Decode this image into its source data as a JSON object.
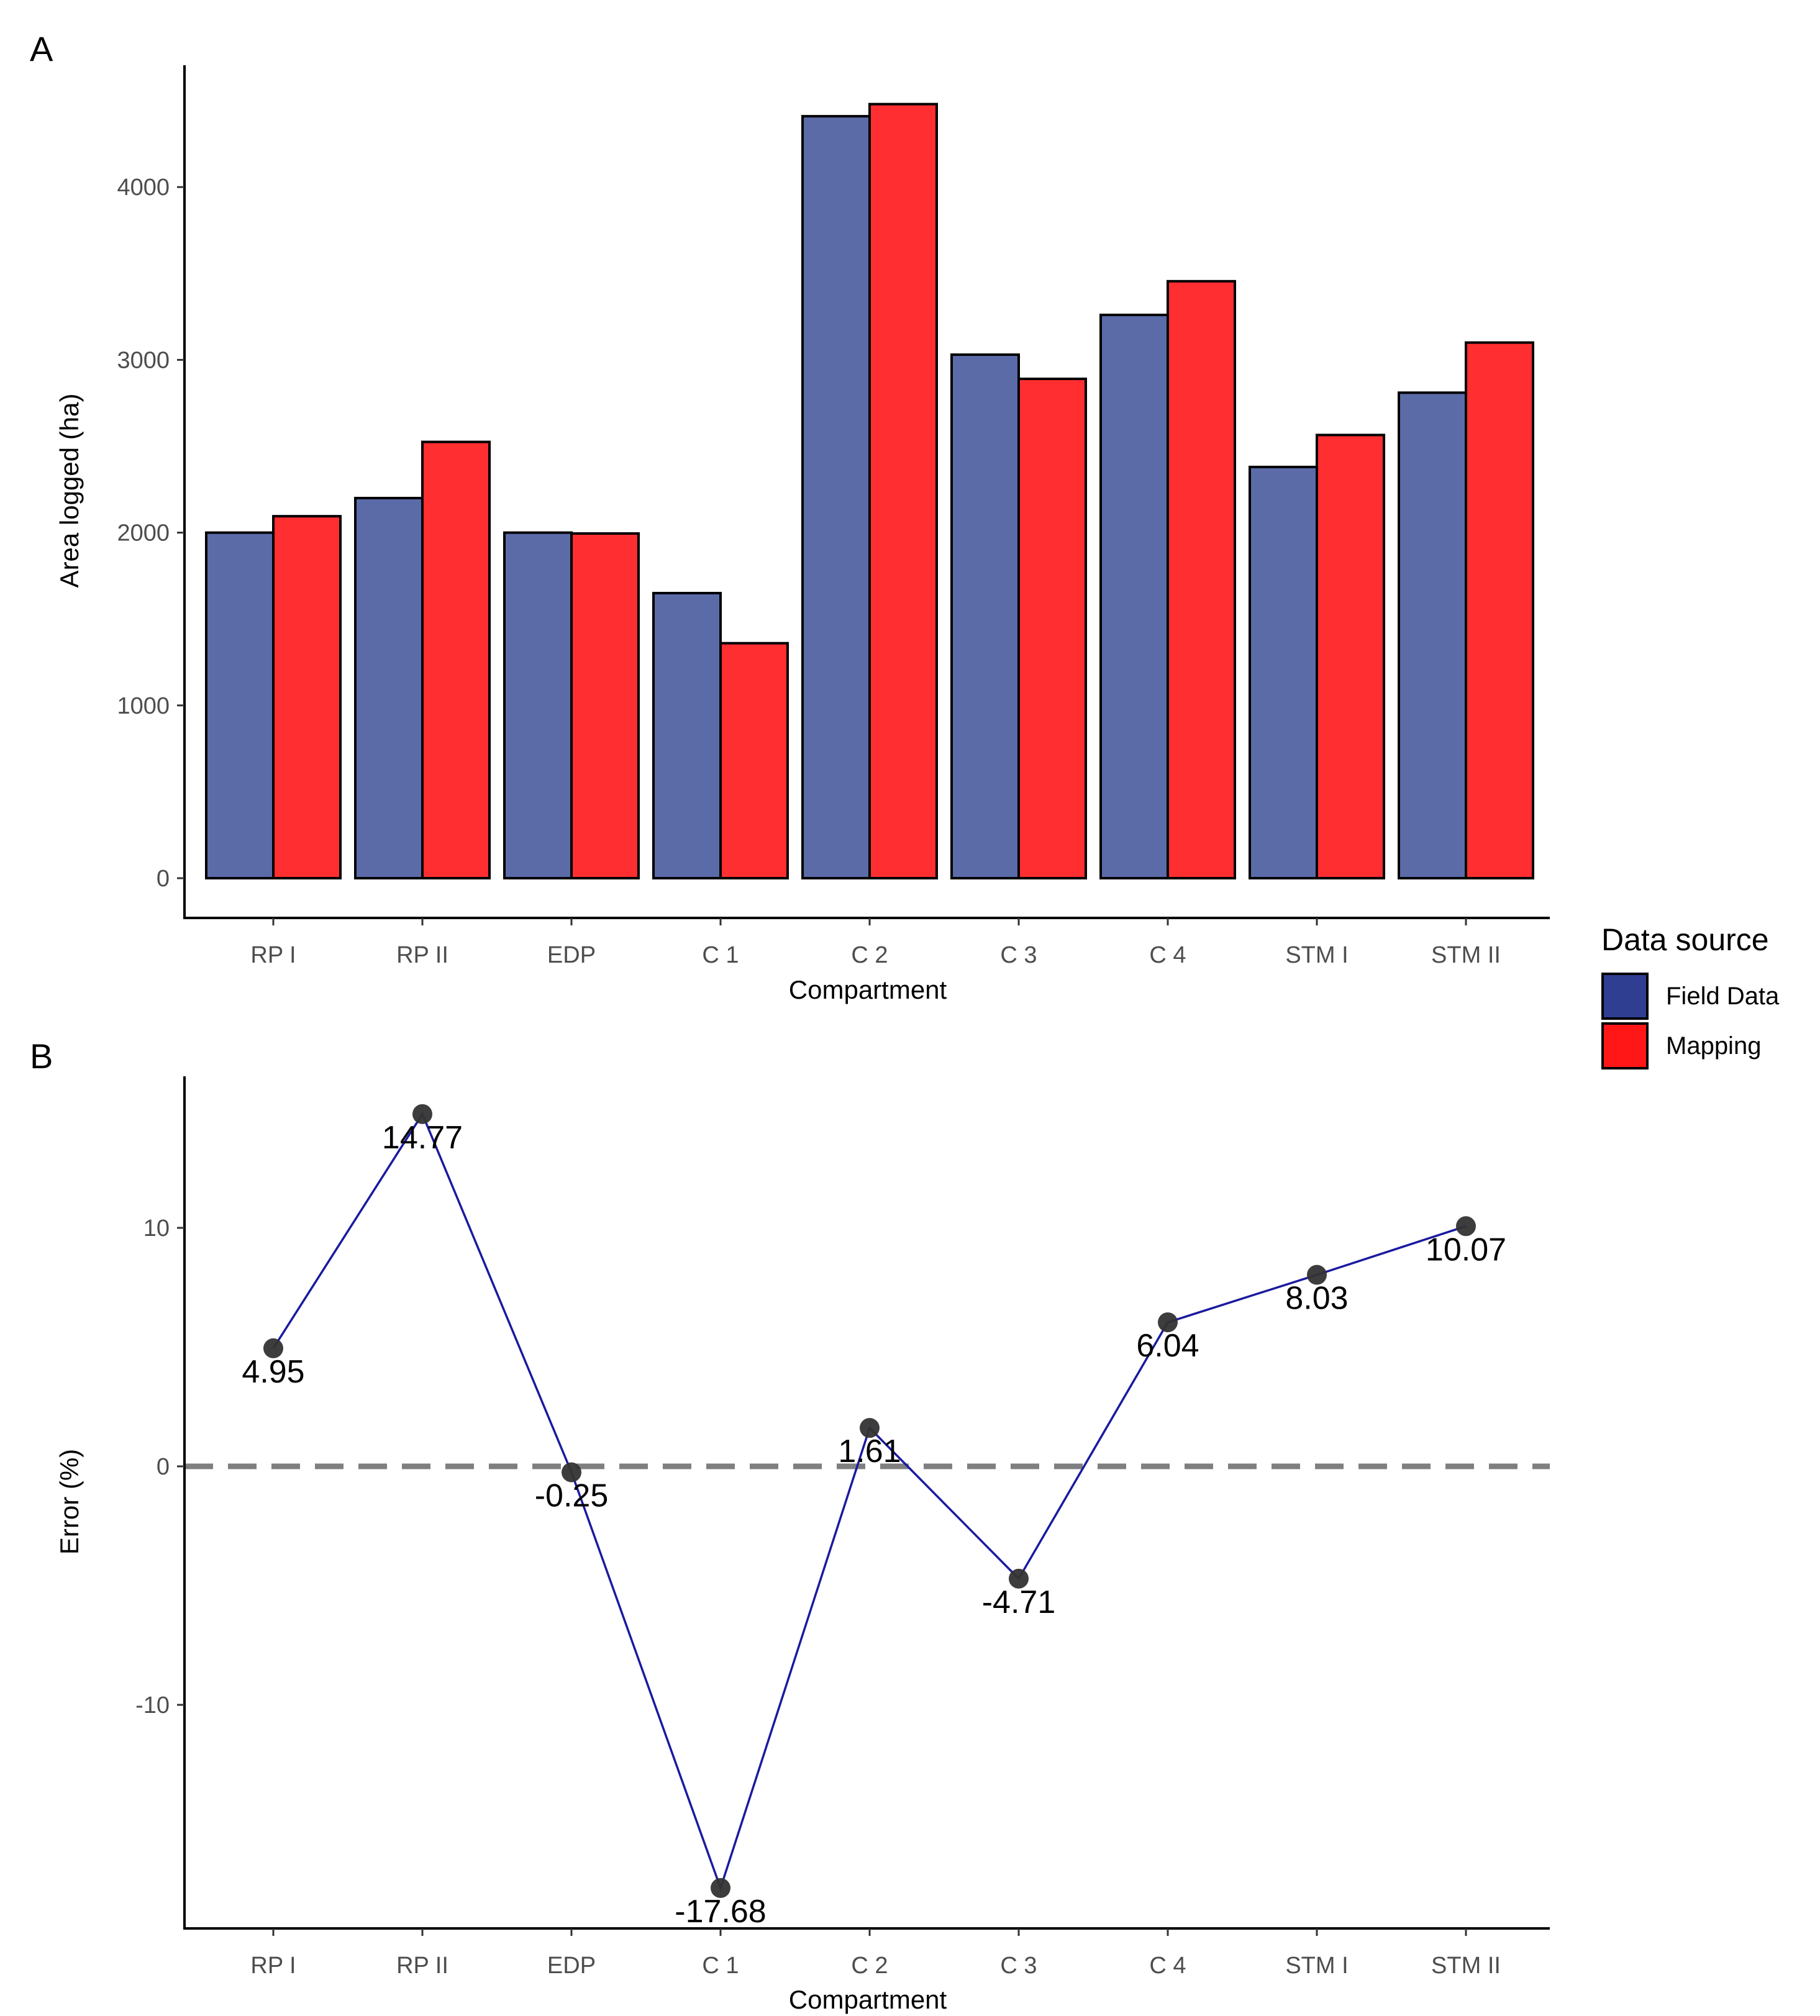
{
  "chart_data": [
    {
      "type": "bar",
      "panel": "A",
      "title": "",
      "xlabel": "Compartment",
      "ylabel": "Area logged (ha)",
      "categories": [
        "RP I",
        "RP II",
        "EDP",
        "C 1",
        "C 2",
        "C 3",
        "C 4",
        "STM I",
        "STM II"
      ],
      "series": [
        {
          "name": "Field Data",
          "color": "#5B6BA8",
          "values": [
            2000,
            2200,
            2000,
            1650,
            4410,
            3030,
            3260,
            2380,
            2810
          ]
        },
        {
          "name": "Mapping",
          "color": "#FF2E31",
          "values": [
            2095,
            2525,
            1995,
            1360,
            4480,
            2890,
            3455,
            2565,
            3100
          ]
        }
      ],
      "yticks": [
        0,
        1000,
        2000,
        3000,
        4000
      ],
      "ylim": [
        -200,
        4700
      ],
      "grid": false
    },
    {
      "type": "line",
      "panel": "B",
      "title": "",
      "xlabel": "Compartment",
      "ylabel": "Error (%)",
      "categories": [
        "RP I",
        "RP II",
        "EDP",
        "C 1",
        "C 2",
        "C 3",
        "C 4",
        "STM I",
        "STM II"
      ],
      "values": [
        4.95,
        14.77,
        -0.25,
        -17.68,
        1.61,
        -4.71,
        6.04,
        8.03,
        10.07
      ],
      "labels": [
        "4.95",
        "14.77",
        "-0.25",
        "-17.68",
        "1.61",
        "-4.71",
        "6.04",
        "8.03",
        "10.07"
      ],
      "line_color": "#1A1AA0",
      "point_color": "#333333",
      "reference_line": {
        "y": 0,
        "style": "dashed",
        "color": "#7F7F7F"
      },
      "yticks": [
        -10,
        0,
        10
      ],
      "ylim": [
        -19,
        16.5
      ],
      "grid": false
    }
  ],
  "panels": {
    "a_letter": "A",
    "b_letter": "B"
  },
  "legend": {
    "title": "Data source",
    "items": [
      {
        "label": "Field Data",
        "color": "#2F3E91"
      },
      {
        "label": "Mapping",
        "color": "#FF1616"
      }
    ],
    "placement": "right"
  }
}
